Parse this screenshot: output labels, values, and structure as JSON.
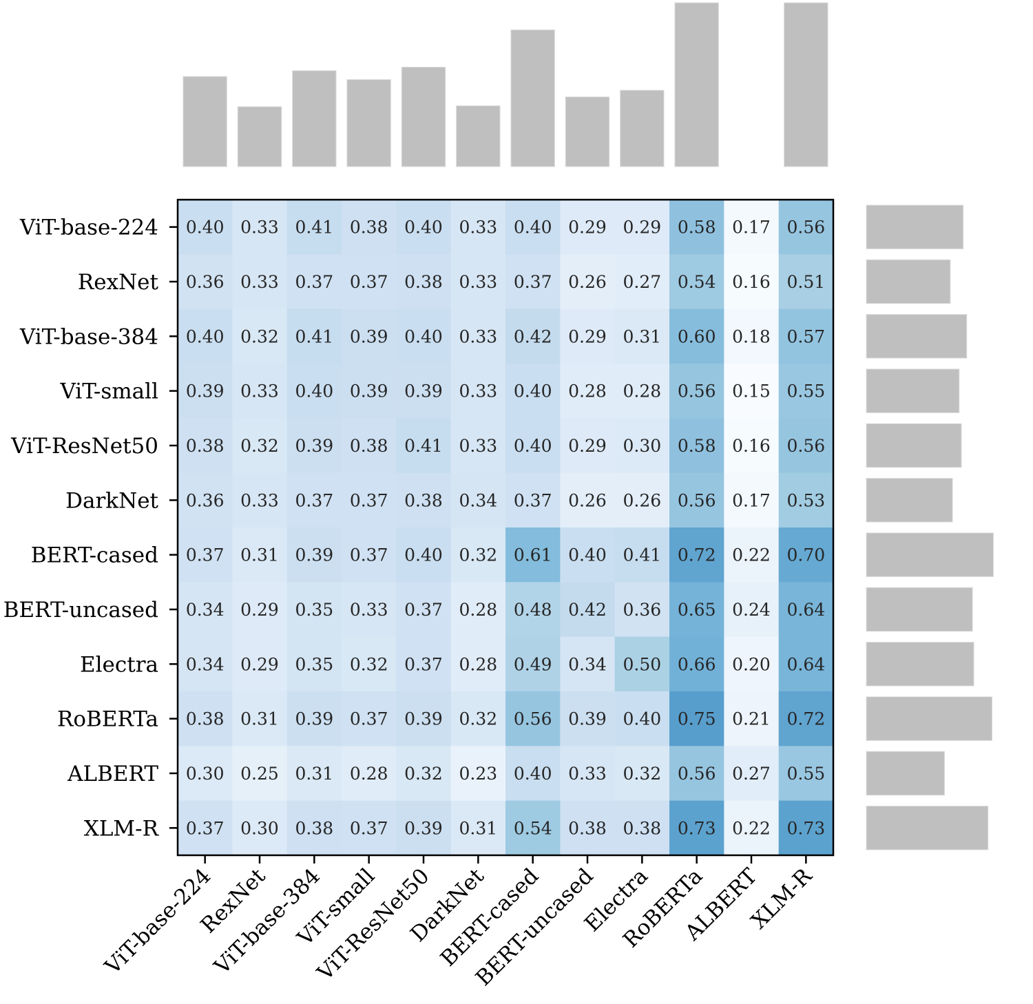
{
  "chart_data": {
    "type": "heatmap",
    "title": "",
    "row_labels": [
      "ViT-base-224",
      "RexNet",
      "ViT-base-384",
      "ViT-small",
      "ViT-ResNet50",
      "DarkNet",
      "BERT-cased",
      "BERT-uncased",
      "Electra",
      "RoBERTa",
      "ALBERT",
      "XLM-R"
    ],
    "col_labels": [
      "ViT-base-224",
      "RexNet",
      "ViT-base-384",
      "ViT-small",
      "ViT-ResNet50",
      "DarkNet",
      "BERT-cased",
      "BERT-uncased",
      "Electra",
      "RoBERTa",
      "ALBERT",
      "XLM-R"
    ],
    "values": [
      [
        0.4,
        0.33,
        0.41,
        0.38,
        0.4,
        0.33,
        0.4,
        0.29,
        0.29,
        0.58,
        0.17,
        0.56
      ],
      [
        0.36,
        0.33,
        0.37,
        0.37,
        0.38,
        0.33,
        0.37,
        0.26,
        0.27,
        0.54,
        0.16,
        0.51
      ],
      [
        0.4,
        0.32,
        0.41,
        0.39,
        0.4,
        0.33,
        0.42,
        0.29,
        0.31,
        0.6,
        0.18,
        0.57
      ],
      [
        0.39,
        0.33,
        0.4,
        0.39,
        0.39,
        0.33,
        0.4,
        0.28,
        0.28,
        0.56,
        0.15,
        0.55
      ],
      [
        0.38,
        0.32,
        0.39,
        0.38,
        0.41,
        0.33,
        0.4,
        0.29,
        0.3,
        0.58,
        0.16,
        0.56
      ],
      [
        0.36,
        0.33,
        0.37,
        0.37,
        0.38,
        0.34,
        0.37,
        0.26,
        0.26,
        0.56,
        0.17,
        0.53
      ],
      [
        0.37,
        0.31,
        0.39,
        0.37,
        0.4,
        0.32,
        0.61,
        0.4,
        0.41,
        0.72,
        0.22,
        0.7
      ],
      [
        0.34,
        0.29,
        0.35,
        0.33,
        0.37,
        0.28,
        0.48,
        0.42,
        0.36,
        0.65,
        0.24,
        0.64
      ],
      [
        0.34,
        0.29,
        0.35,
        0.32,
        0.37,
        0.28,
        0.49,
        0.34,
        0.5,
        0.66,
        0.2,
        0.64
      ],
      [
        0.38,
        0.31,
        0.39,
        0.37,
        0.39,
        0.32,
        0.56,
        0.39,
        0.4,
        0.75,
        0.21,
        0.72
      ],
      [
        0.3,
        0.25,
        0.31,
        0.28,
        0.32,
        0.23,
        0.4,
        0.33,
        0.32,
        0.56,
        0.27,
        0.55
      ],
      [
        0.37,
        0.3,
        0.38,
        0.37,
        0.39,
        0.31,
        0.54,
        0.38,
        0.38,
        0.73,
        0.22,
        0.73
      ]
    ],
    "colormap": "Blues",
    "color_range": [
      0.15,
      0.75
    ],
    "annotations": "cell values, 2 decimals",
    "marginal_top": {
      "type": "bar",
      "aggregate": "column sum",
      "axis_min": 2.36,
      "axis_max": 6.05,
      "color": "#bfbfbf"
    },
    "marginal_right": {
      "type": "barh",
      "aggregate": "row sum",
      "axis_min": 2.36,
      "axis_max": 6.05,
      "color": "#bfbfbf"
    },
    "xlabel": "",
    "ylabel": "",
    "grid": false,
    "legend": "none"
  }
}
